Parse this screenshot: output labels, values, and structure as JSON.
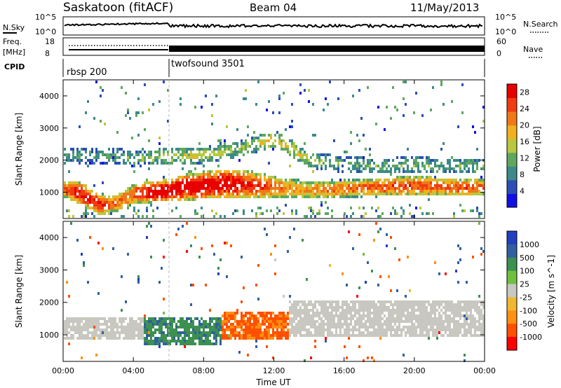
{
  "header": {
    "station": "Saskatoon (fitACF)",
    "beam": "Beam 04",
    "date": "11/May/2013"
  },
  "noise_panel": {
    "left_label": "N.Sky",
    "right_label": "N.Search",
    "left_ticks": [
      "10^5",
      "10^0"
    ],
    "right_ticks": [
      "10^5",
      "10^0"
    ]
  },
  "freq_panel": {
    "left_label_1": "Freq.",
    "left_label_2": "[MHz]",
    "right_label": "Nave",
    "left_ticks": [
      "18",
      "8"
    ],
    "right_ticks": [
      "60",
      "0"
    ]
  },
  "cpid_panel": {
    "label": "CPID",
    "segments": [
      {
        "name": "rbsp 200",
        "start_hour": 0
      },
      {
        "name": "twofsound 3501",
        "start_hour": 6
      }
    ]
  },
  "colors": {
    "power_scale": [
      "#1010e6",
      "#2a4fb5",
      "#3c8a8a",
      "#5ea85e",
      "#b8c840",
      "#f0b020",
      "#f07818",
      "#f03c10",
      "#e80000"
    ],
    "velocity_scale": [
      "#ff0000",
      "#ff5000",
      "#ff9010",
      "#f0b830",
      "#c8c8c0",
      "#c8c8c0",
      "#70c040",
      "#3c9050",
      "#3060a0",
      "#2040c0"
    ]
  },
  "chart_data": [
    {
      "type": "heatmap",
      "title": "",
      "ylabel": "Slant Range [km]",
      "xlabel": "",
      "x_ticks": [
        "00:00",
        "04:00",
        "08:00",
        "12:00",
        "16:00",
        "20:00",
        "00:00"
      ],
      "y_ticks": [
        "1000",
        "2000",
        "3000",
        "4000"
      ],
      "ylim": [
        180,
        4500
      ],
      "xlim_hours": [
        0,
        24
      ],
      "colorbar_label": "Power [dB]",
      "colorbar_ticks": [
        "4",
        "8",
        "12",
        "16",
        "20",
        "24",
        "28"
      ],
      "colorbar_range": [
        0,
        30
      ],
      "main_echo_band": {
        "hours": [
          0,
          1,
          2,
          3,
          4,
          5,
          6,
          7,
          8,
          9,
          10,
          11,
          12,
          13,
          14,
          16,
          18,
          20,
          22,
          24
        ],
        "center_km": [
          1150,
          1000,
          650,
          700,
          1000,
          1050,
          1100,
          1200,
          1250,
          1300,
          1300,
          1250,
          1200,
          1150,
          1100,
          1150,
          1200,
          1250,
          1200,
          1200
        ],
        "width_km": [
          500,
          700,
          600,
          550,
          600,
          650,
          700,
          800,
          850,
          900,
          900,
          800,
          700,
          600,
          550,
          550,
          550,
          600,
          550,
          500
        ],
        "peak_power_db": [
          24,
          28,
          28,
          22,
          24,
          30,
          30,
          30,
          30,
          30,
          28,
          26,
          22,
          20,
          20,
          22,
          24,
          24,
          24,
          24
        ]
      },
      "upper_echo_band": {
        "hours": [
          0,
          2,
          4,
          6,
          8,
          10,
          12,
          13,
          14,
          16,
          18,
          20,
          22,
          24
        ],
        "center_km": [
          2150,
          2200,
          2100,
          2150,
          2200,
          2400,
          2700,
          2400,
          2050,
          1900,
          1850,
          1900,
          1850,
          1850
        ],
        "peak_power_db": [
          10,
          10,
          12,
          16,
          16,
          14,
          18,
          18,
          14,
          12,
          12,
          12,
          12,
          12
        ]
      }
    },
    {
      "type": "heatmap",
      "title": "",
      "ylabel": "Slant Range [km]",
      "xlabel": "Time UT",
      "x_ticks": [
        "00:00",
        "04:00",
        "08:00",
        "12:00",
        "16:00",
        "20:00",
        "00:00"
      ],
      "y_ticks": [
        "1000",
        "2000",
        "3000",
        "4000"
      ],
      "ylim": [
        180,
        4500
      ],
      "xlim_hours": [
        0,
        24
      ],
      "colorbar_label": "Velocity [m s^-1]",
      "colorbar_ticks": [
        "1000",
        "500",
        "100",
        "25",
        "-25",
        "-100",
        "-500",
        "-1000"
      ],
      "colorbar_range": [
        -1000,
        1000
      ],
      "velocity_regions": [
        {
          "name": "ground-scatter-morning",
          "h0": 0,
          "h1": 4.5,
          "center_km": 1200,
          "width_km": 700,
          "velocity": 0
        },
        {
          "name": "green-band",
          "h0": 4.0,
          "h1": 9.0,
          "center_km": 1150,
          "width_km": 800,
          "velocity": 250
        },
        {
          "name": "orange-band",
          "h0": 9.0,
          "h1": 12.8,
          "center_km": 1350,
          "width_km": 900,
          "velocity": -350
        },
        {
          "name": "ground-scatter-afternoon",
          "h0": 12.8,
          "h1": 24,
          "center_km": 1550,
          "width_km": 1100,
          "velocity": 0
        }
      ]
    }
  ]
}
